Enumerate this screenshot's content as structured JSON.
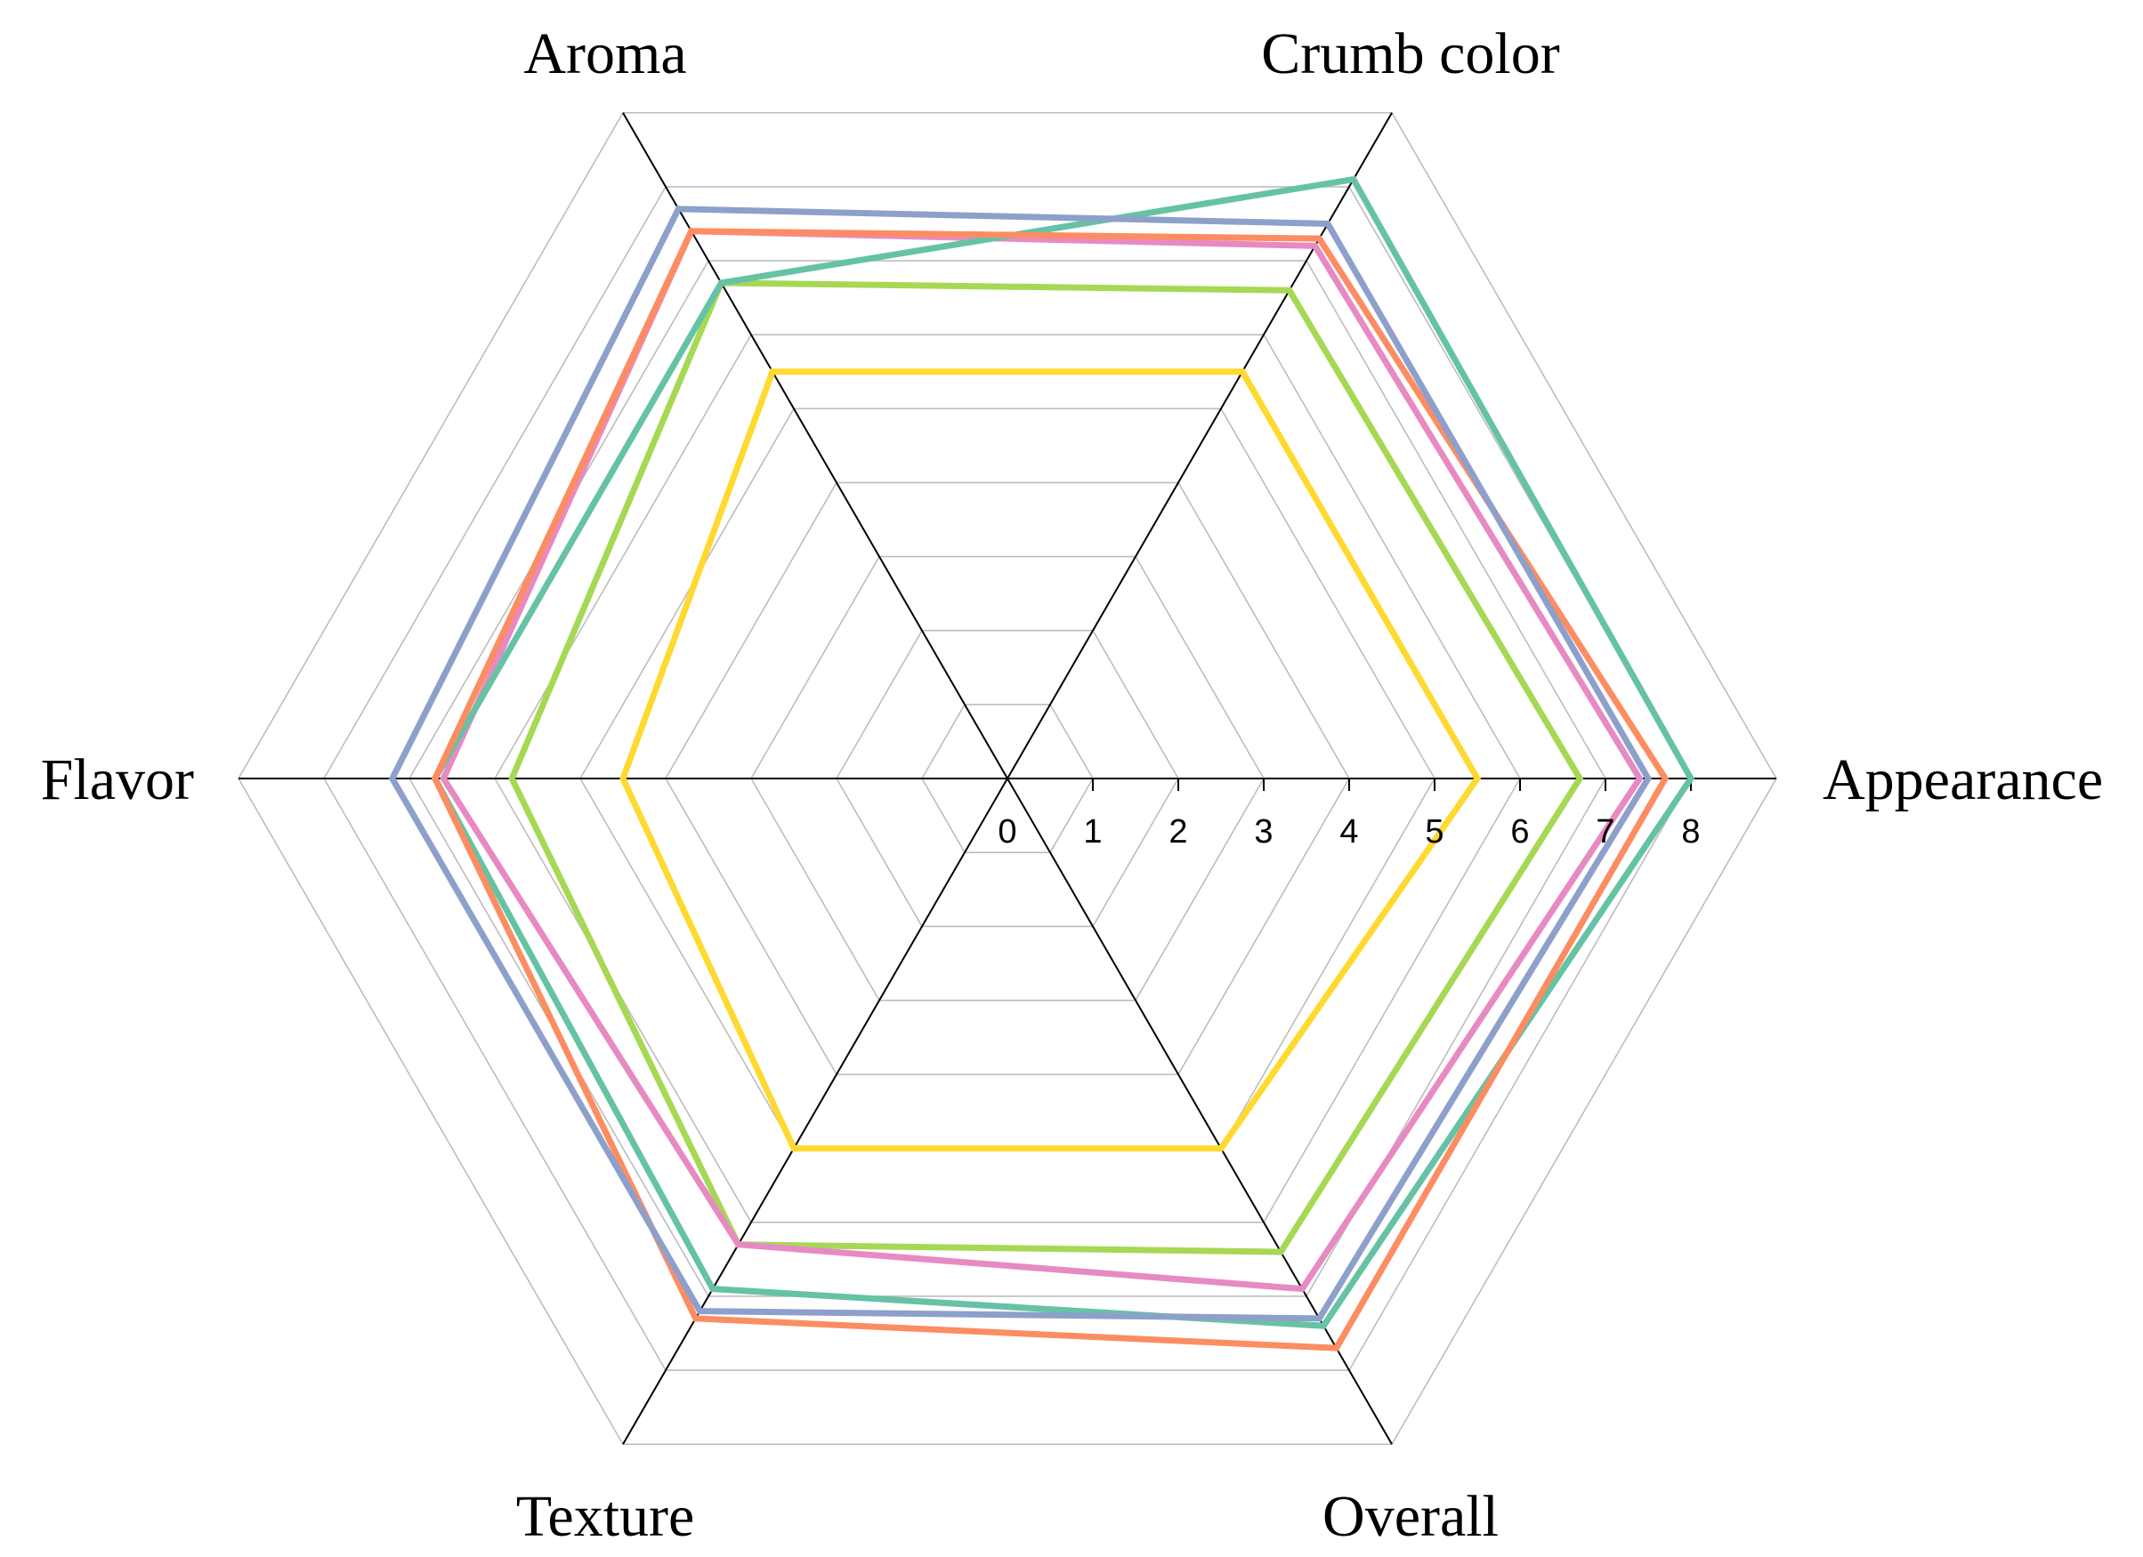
{
  "chart_data": {
    "type": "radar",
    "title": "",
    "axes": [
      "Appearance",
      "Crumb color",
      "Aroma",
      "Flavor",
      "Texture",
      "Overall"
    ],
    "scale": {
      "min": 0,
      "max": 9,
      "ticks": [
        0,
        1,
        2,
        3,
        4,
        5,
        6,
        7,
        8
      ]
    },
    "grid": true,
    "legend": "none",
    "series": [
      {
        "color": "#ffd92f",
        "values": [
          5.5,
          5.5,
          5.5,
          4.5,
          5.0,
          5.0
        ]
      },
      {
        "color": "#a6d854",
        "values": [
          6.7,
          6.6,
          6.7,
          5.8,
          6.3,
          6.4
        ]
      },
      {
        "color": "#e78ac3",
        "values": [
          7.4,
          7.2,
          7.4,
          6.6,
          6.3,
          6.9
        ]
      },
      {
        "color": "#66c2a5",
        "values": [
          8.0,
          8.1,
          6.7,
          6.7,
          6.9,
          7.4
        ]
      },
      {
        "color": "#fc8d62",
        "values": [
          7.7,
          7.3,
          7.4,
          6.7,
          7.3,
          7.7
        ]
      },
      {
        "color": "#8da0cb",
        "values": [
          7.5,
          7.5,
          7.7,
          7.2,
          7.2,
          7.3
        ]
      }
    ]
  }
}
